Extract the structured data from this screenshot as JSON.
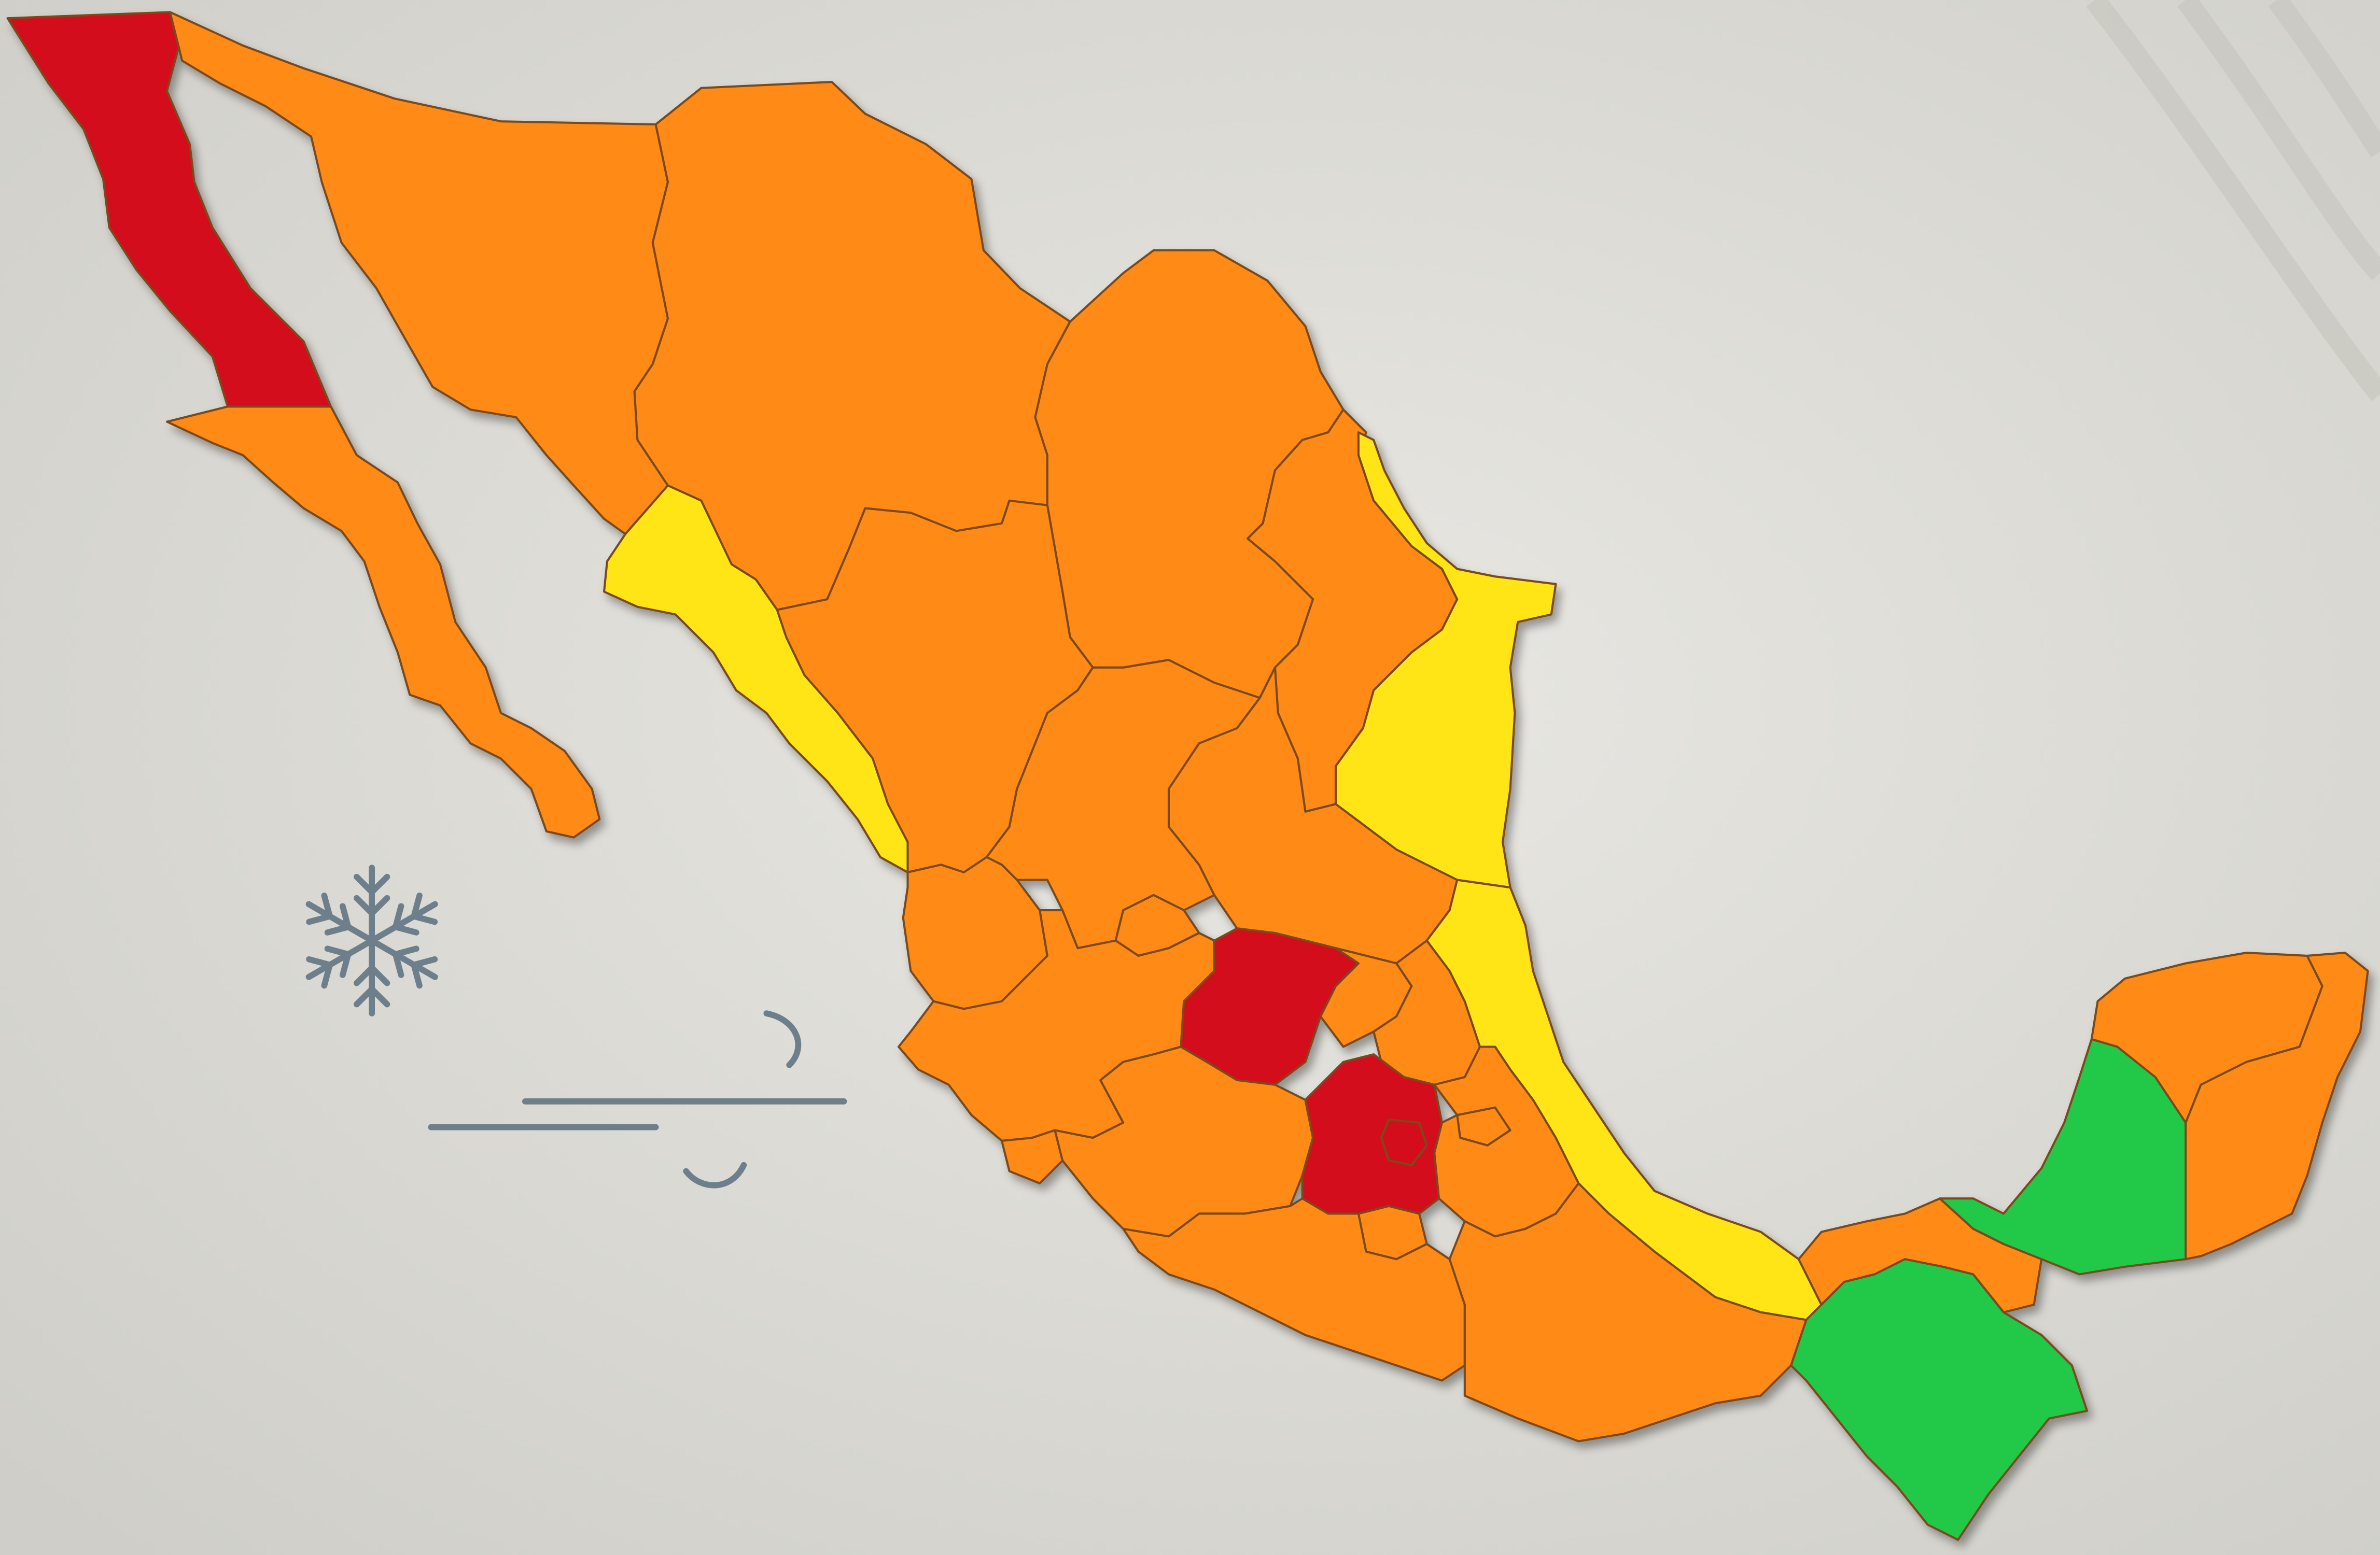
{
  "colors": {
    "background": "#dcdbd5",
    "background_light": "#e6e5e0",
    "red": "#d40f1c",
    "orange": "#ff8a12",
    "yellow": "#ffe414",
    "green": "#21c94a",
    "border": "#7a4a1a",
    "decoration": "#6e7f8c"
  },
  "legend_levels": [
    "red",
    "orange",
    "yellow",
    "green"
  ],
  "regions": [
    {
      "name": "baja-california",
      "level": "red"
    },
    {
      "name": "baja-california-sur",
      "level": "orange"
    },
    {
      "name": "sonora",
      "level": "orange"
    },
    {
      "name": "chihuahua",
      "level": "orange"
    },
    {
      "name": "coahuila",
      "level": "orange"
    },
    {
      "name": "nuevo-leon",
      "level": "orange"
    },
    {
      "name": "tamaulipas",
      "level": "yellow"
    },
    {
      "name": "sinaloa",
      "level": "yellow"
    },
    {
      "name": "durango",
      "level": "orange"
    },
    {
      "name": "zacatecas",
      "level": "orange"
    },
    {
      "name": "san-luis-potosi",
      "level": "orange"
    },
    {
      "name": "nayarit",
      "level": "orange"
    },
    {
      "name": "aguascalientes",
      "level": "orange"
    },
    {
      "name": "jalisco",
      "level": "orange"
    },
    {
      "name": "guanajuato",
      "level": "red"
    },
    {
      "name": "queretaro",
      "level": "orange"
    },
    {
      "name": "hidalgo",
      "level": "orange"
    },
    {
      "name": "veracruz",
      "level": "yellow"
    },
    {
      "name": "colima",
      "level": "orange"
    },
    {
      "name": "michoacan",
      "level": "orange"
    },
    {
      "name": "estado-de-mexico",
      "level": "red"
    },
    {
      "name": "ciudad-de-mexico",
      "level": "red"
    },
    {
      "name": "tlaxcala",
      "level": "orange"
    },
    {
      "name": "puebla",
      "level": "orange"
    },
    {
      "name": "morelos",
      "level": "orange"
    },
    {
      "name": "guerrero",
      "level": "orange"
    },
    {
      "name": "oaxaca",
      "level": "orange"
    },
    {
      "name": "tabasco",
      "level": "orange"
    },
    {
      "name": "chiapas",
      "level": "green"
    },
    {
      "name": "campeche",
      "level": "green"
    },
    {
      "name": "yucatan",
      "level": "orange"
    },
    {
      "name": "quintana-roo",
      "level": "orange"
    }
  ],
  "decorations": {
    "snowflake": "snowflake-icon",
    "wind": "wind-icon"
  }
}
